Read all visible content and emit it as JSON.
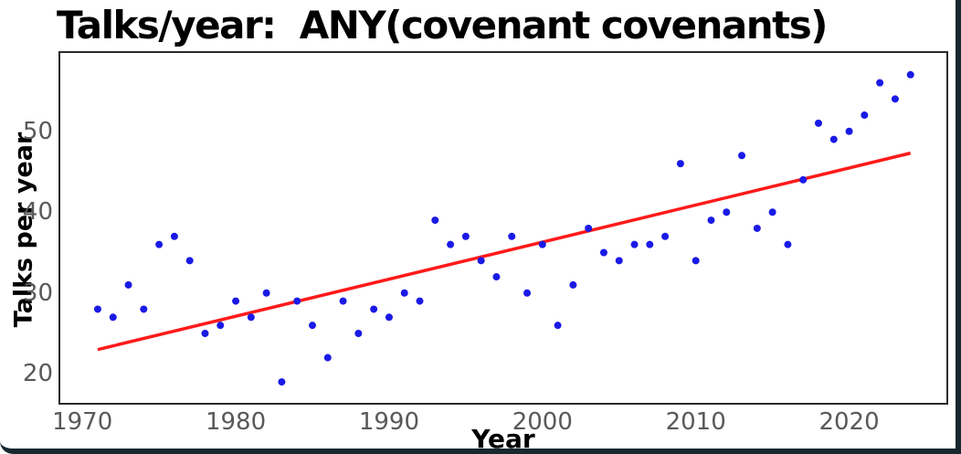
{
  "window": {
    "border_color": "#16282e",
    "background": "#ffffff"
  },
  "chart_data": {
    "type": "scatter",
    "title": "Talks/year:  ANY(covenant covenants)",
    "xlabel": "Year",
    "ylabel": "Talks per year",
    "x": [
      1971,
      1972,
      1973,
      1974,
      1975,
      1976,
      1977,
      1978,
      1979,
      1980,
      1981,
      1982,
      1983,
      1984,
      1985,
      1986,
      1987,
      1988,
      1989,
      1990,
      1991,
      1992,
      1993,
      1994,
      1995,
      1996,
      1997,
      1998,
      1999,
      2000,
      2001,
      2002,
      2003,
      2004,
      2005,
      2006,
      2007,
      2008,
      2009,
      2010,
      2011,
      2012,
      2013,
      2014,
      2015,
      2016,
      2017,
      2018,
      2019,
      2020,
      2021,
      2022,
      2023,
      2024
    ],
    "y": [
      28,
      27,
      31,
      28,
      36,
      37,
      34,
      25,
      26,
      29,
      27,
      30,
      19,
      29,
      26,
      22,
      29,
      25,
      28,
      27,
      30,
      29,
      39,
      36,
      37,
      34,
      32,
      37,
      30,
      36,
      26,
      31,
      38,
      35,
      34,
      36,
      36,
      37,
      46,
      34,
      39,
      40,
      47,
      38,
      40,
      36,
      44,
      51,
      49,
      50,
      52,
      56,
      54,
      57
    ],
    "trend": {
      "x1": 1971,
      "y1": 23.0,
      "x2": 2024,
      "y2": 47.3
    },
    "xticks": [
      1970,
      1980,
      1990,
      2000,
      2010,
      2020
    ],
    "yticks": [
      20,
      30,
      40,
      50
    ],
    "xlim": [
      1968.5,
      2026.4
    ],
    "ylim": [
      16.3,
      59.8
    ],
    "grid": false,
    "legend": false,
    "point_color": "#1a1ae6",
    "trend_color": "#ff1a1a",
    "tick_label_color": "#595959",
    "axis_color": "#2a2a2a"
  }
}
